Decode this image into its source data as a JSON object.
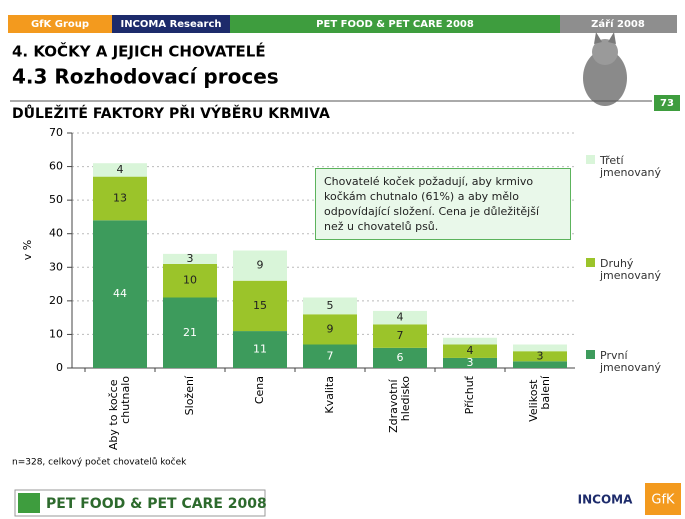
{
  "header": {
    "left": "GfK Group",
    "left2": "INCOMA Research",
    "center": "PET FOOD & PET CARE 2008",
    "right": "Září 2008"
  },
  "section": "4. KOČKY A JEJICH CHOVATELÉ",
  "subsection": "4.3 Rozhodovací proces",
  "page_number": "73",
  "footnote": "n=328, celkový počet chovatelů koček",
  "footer": {
    "logo": "PET FOOD & PET CARE 2008",
    "brand1": "INCOMA",
    "brand2": "GfK"
  },
  "chart_data": {
    "type": "stacked_bar",
    "title": "DŮLEŽITÉ FAKTORY PŘI VÝBĚRU KRMIVA",
    "y_label": "v %",
    "annotation": "Chovatelé koček požadují, aby krmivo kočkám chutnalo (61%) a aby mělo odpovídající složení. Cena je důležitější než u chovatelů psů.",
    "categories": [
      "Aby to kočce chutnalo",
      "Složení",
      "Cena",
      "Kvalita",
      "Zdravotní hledisko",
      "Příchuť",
      "Velikost balení"
    ],
    "series": [
      {
        "name": "První jmenovaný",
        "color": "#3d9b5c",
        "values": [
          44,
          21,
          11,
          7,
          6,
          3,
          2
        ],
        "value_labels": [
          "44",
          "21",
          "11",
          "7",
          "6",
          "3",
          null
        ]
      },
      {
        "name": "Druhý jmenovaný",
        "color": "#9bc42a",
        "values": [
          13,
          10,
          15,
          9,
          7,
          4,
          3
        ],
        "value_labels": [
          "13",
          "10",
          "15",
          "9",
          "7",
          "4",
          "3"
        ]
      },
      {
        "name": "Třetí jmenovaný",
        "color": "#d9f5d9",
        "values": [
          4,
          3,
          9,
          5,
          4,
          2,
          2
        ],
        "value_labels": [
          "4",
          "3",
          "9",
          "5",
          "4",
          null,
          null
        ]
      }
    ],
    "ylim": [
      0,
      70
    ],
    "yticks": [
      0,
      10,
      20,
      30,
      40,
      50,
      60,
      70
    ],
    "grid": true
  }
}
